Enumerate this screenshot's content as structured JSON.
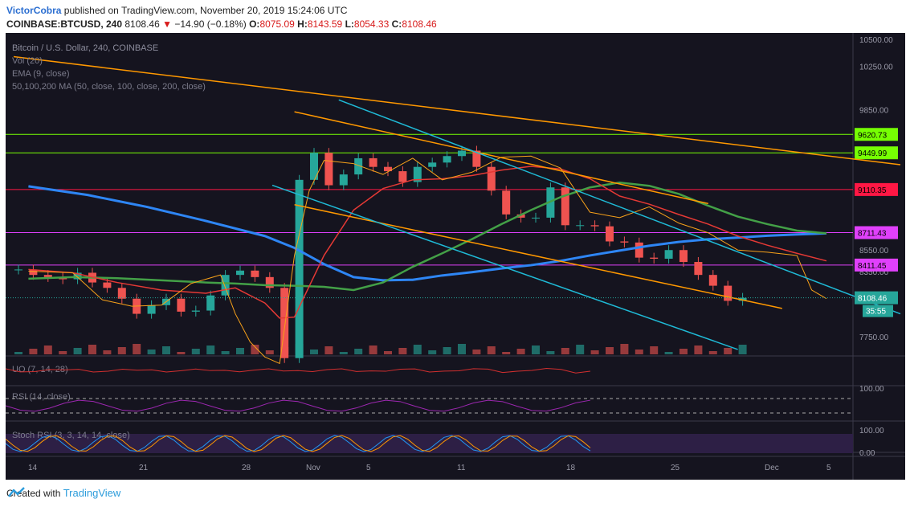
{
  "header": {
    "author": "VictorCobra",
    "published_text": " published on TradingView.com, November 20, 2019 15:24:06 UTC",
    "symbol_line": "COINBASE:BTCUSD, 240",
    "last": "8108.46",
    "change_arrow": "▼",
    "change": "−14.90 (−0.18%)",
    "open_label": "O:",
    "open": "8075.09",
    "high_label": "H:",
    "high": "8143.59",
    "low_label": "L:",
    "low": "8054.33",
    "close_label": "C:",
    "close": "8108.46"
  },
  "footer": {
    "created_with": "Created with",
    "brand": "TradingView"
  },
  "colors": {
    "background": "#15141f",
    "bull": "#26a69a",
    "bear": "#ef5350",
    "ema": "#f7a11a",
    "ma50": "#e53935",
    "ma100": "#43a047",
    "ma200": "#2e86f5",
    "trend_orange": "#ff9800",
    "trend_cyan": "#1fbad6",
    "level_green": "#76ff03",
    "level_red": "#ff1744",
    "level_magenta": "#e040fb"
  },
  "chart_data": {
    "type": "candlestick",
    "symbol": "COINBASE:BTCUSD",
    "interval": "240",
    "pane_title": "Bitcoin / U.S. Dollar, 240, COINBASE",
    "price_ylim": [
      7570,
      10530
    ],
    "price_ticks": [
      "10500.00",
      "10250.00",
      "9850.00",
      "9630.00",
      "8550.00",
      "8350.00",
      "7750.00"
    ],
    "x_ticks": [
      "14",
      "21",
      "28",
      "Nov",
      "5",
      "11",
      "18",
      "25",
      "Dec",
      "5"
    ],
    "indicators": [
      "Vol (20)",
      "EMA (9, close)",
      "50,100,200 MA (50, close, 100, close, 200, close)"
    ],
    "horizontal_levels": [
      {
        "value": 9620.73,
        "label": "9620.73",
        "color": "#76ff03"
      },
      {
        "value": 9449.99,
        "label": "9449.99",
        "color": "#76ff03"
      },
      {
        "value": 9110.35,
        "label": "9110.35",
        "color": "#ff1744"
      },
      {
        "value": 8711.43,
        "label": "8711.43",
        "color": "#e040fb"
      },
      {
        "value": 8411.45,
        "label": "8411.45",
        "color": "#e040fb"
      }
    ],
    "last_price": {
      "value": 8108.46,
      "label": "8108.46",
      "countdown": "35:55"
    },
    "ma200": [
      [
        1,
        9140
      ],
      [
        5,
        9060
      ],
      [
        9,
        8950
      ],
      [
        13,
        8820
      ],
      [
        17,
        8680
      ],
      [
        19,
        8570
      ],
      [
        21,
        8420
      ],
      [
        23,
        8300
      ],
      [
        25,
        8270
      ],
      [
        27,
        8275
      ],
      [
        29,
        8315
      ],
      [
        31,
        8345
      ],
      [
        33,
        8380
      ],
      [
        35,
        8410
      ],
      [
        37,
        8450
      ],
      [
        39,
        8500
      ],
      [
        41,
        8545
      ],
      [
        43,
        8590
      ],
      [
        45,
        8625
      ],
      [
        47,
        8650
      ],
      [
        49,
        8665
      ],
      [
        51,
        8683
      ],
      [
        53,
        8695
      ],
      [
        55,
        8705
      ]
    ],
    "ma100": [
      [
        1,
        8285
      ],
      [
        4,
        8300
      ],
      [
        7,
        8290
      ],
      [
        10,
        8270
      ],
      [
        13,
        8250
      ],
      [
        15,
        8240
      ],
      [
        17,
        8225
      ],
      [
        19,
        8220
      ],
      [
        21,
        8210
      ],
      [
        23,
        8180
      ],
      [
        25,
        8250
      ],
      [
        27,
        8395
      ],
      [
        29,
        8520
      ],
      [
        31,
        8650
      ],
      [
        33,
        8790
      ],
      [
        35,
        8920
      ],
      [
        37,
        9040
      ],
      [
        39,
        9130
      ],
      [
        41,
        9175
      ],
      [
        43,
        9145
      ],
      [
        45,
        9070
      ],
      [
        47,
        8960
      ],
      [
        49,
        8860
      ],
      [
        51,
        8790
      ],
      [
        53,
        8730
      ],
      [
        55,
        8705
      ]
    ],
    "ma50": [
      [
        1,
        8370
      ],
      [
        4,
        8340
      ],
      [
        7,
        8250
      ],
      [
        10,
        8180
      ],
      [
        13,
        8150
      ],
      [
        15,
        8200
      ],
      [
        17,
        8060
      ],
      [
        18,
        7920
      ],
      [
        19,
        7930
      ],
      [
        21,
        8500
      ],
      [
        23,
        8920
      ],
      [
        25,
        9120
      ],
      [
        27,
        9200
      ],
      [
        29,
        9210
      ],
      [
        31,
        9240
      ],
      [
        33,
        9290
      ],
      [
        35,
        9325
      ],
      [
        37,
        9300
      ],
      [
        39,
        9210
      ],
      [
        41,
        9050
      ],
      [
        43,
        8975
      ],
      [
        45,
        8880
      ],
      [
        47,
        8790
      ],
      [
        49,
        8680
      ],
      [
        51,
        8595
      ],
      [
        53,
        8520
      ],
      [
        55,
        8450
      ]
    ],
    "ema9": [
      [
        1,
        8355
      ],
      [
        4,
        8340
      ],
      [
        6,
        8090
      ],
      [
        8,
        8030
      ],
      [
        10,
        8040
      ],
      [
        12,
        8240
      ],
      [
        14,
        8320
      ],
      [
        15,
        7960
      ],
      [
        16,
        7700
      ],
      [
        17,
        7560
      ],
      [
        18,
        7500
      ],
      [
        19,
        8500
      ],
      [
        20,
        9100
      ],
      [
        21,
        9380
      ],
      [
        23,
        9350
      ],
      [
        25,
        9250
      ],
      [
        27,
        9400
      ],
      [
        29,
        9200
      ],
      [
        31,
        9270
      ],
      [
        33,
        9410
      ],
      [
        35,
        9420
      ],
      [
        37,
        9310
      ],
      [
        39,
        8900
      ],
      [
        41,
        8850
      ],
      [
        43,
        8950
      ],
      [
        45,
        8800
      ],
      [
        47,
        8710
      ],
      [
        49,
        8550
      ],
      [
        51,
        8530
      ],
      [
        53,
        8500
      ],
      [
        54,
        8180
      ],
      [
        55,
        8100
      ]
    ],
    "closes": [
      8370,
      8320,
      8300,
      8280,
      8340,
      8250,
      8200,
      8100,
      7960,
      8040,
      8100,
      7980,
      7990,
      8130,
      8320,
      8360,
      8300,
      8200,
      7550,
      9200,
      9450,
      9150,
      9250,
      9400,
      9320,
      9280,
      9180,
      9320,
      9360,
      9420,
      9470,
      9320,
      9100,
      8880,
      8850,
      8850,
      9130,
      8780,
      8780,
      8770,
      8630,
      8620,
      8480,
      8470,
      8550,
      8440,
      8320,
      8220,
      8080,
      8108
    ],
    "trendlines": [
      {
        "color": "orange",
        "from": [
          0,
          10340
        ],
        "to": [
          60,
          9340
        ]
      },
      {
        "color": "orange",
        "from": [
          19,
          9830
        ],
        "to": [
          47,
          8980
        ]
      },
      {
        "color": "orange",
        "from": [
          19,
          8970
        ],
        "to": [
          52,
          8010
        ]
      },
      {
        "color": "cyan",
        "from": [
          22,
          9940
        ],
        "to": [
          60,
          7960
        ]
      },
      {
        "color": "cyan",
        "from": [
          17.5,
          9150
        ],
        "to": [
          49,
          7630
        ]
      }
    ],
    "volume_pane": {
      "label": "Vol (20)"
    },
    "uo_pane": {
      "label": "UO (7, 14, 28)"
    },
    "rsi_pane": {
      "label": "RSI (14, close)",
      "ticks": [
        "100.00"
      ]
    },
    "stoch_pane": {
      "label": "Stoch RSI (3, 3, 14, 14, close)",
      "ticks": [
        "100.00",
        "0.00"
      ]
    }
  }
}
